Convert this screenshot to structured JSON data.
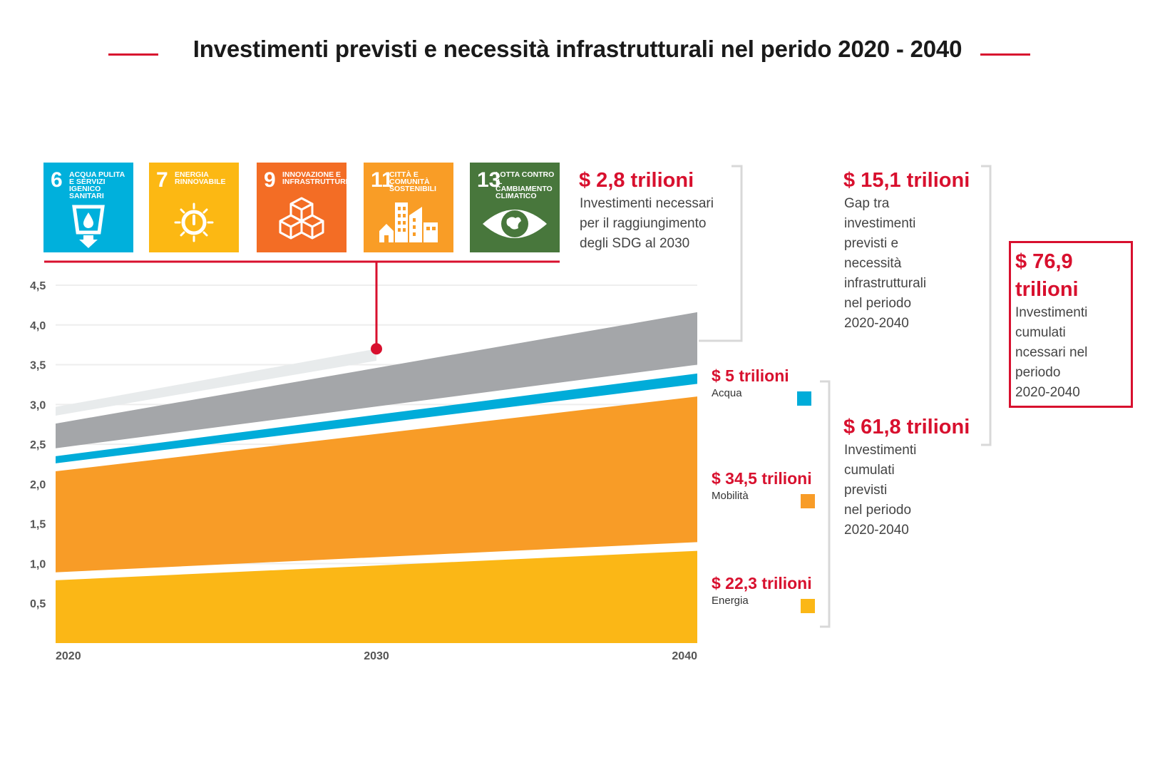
{
  "title": "Investimenti previsti e necessità infrastrutturali nel perido 2020 - 2040",
  "sdgs": [
    {
      "num": "6",
      "label": "Acqua pulita e servizi igenico sanitari",
      "color": "#00b0dc",
      "icon": "water-icon"
    },
    {
      "num": "7",
      "label": "Energia rinnovabile",
      "color": "#fcb813",
      "icon": "sun-power-icon"
    },
    {
      "num": "9",
      "label": "Innovazione e infrastrutture",
      "color": "#f36d25",
      "icon": "cubes-icon"
    },
    {
      "num": "11",
      "label": "Città e comunità sostenibili",
      "color": "#f99d26",
      "icon": "city-icon"
    },
    {
      "num": "13",
      "label": "Lotta contro il cambiamento climatico",
      "color": "#48773c",
      "icon": "eye-globe-icon"
    }
  ],
  "annotations": {
    "sdg_need": {
      "amount": "$ 2,8 trilioni",
      "lines": [
        "Investimenti necessari",
        "per il raggiungimento",
        "degli SDG al 2030"
      ]
    },
    "gap": {
      "amount": "$ 15,1 trilioni",
      "lines": [
        "Gap tra",
        "investimenti",
        "previsti e",
        "necessità",
        "infrastrutturali",
        "nel periodo",
        "2020-2040"
      ]
    },
    "planned": {
      "amount": "$ 61,8 trilioni",
      "lines": [
        "Investimenti",
        "cumulati",
        "previsti",
        "nel periodo",
        "2020-2040"
      ]
    },
    "total": {
      "amount_line1": "$ 76,9",
      "amount_line2": "trilioni",
      "lines": [
        "Investimenti",
        "cumulati",
        "ncessari nel",
        "periodo",
        "2020-2040"
      ]
    }
  },
  "categories": [
    {
      "amount": "$ 5 trilioni",
      "name": "Acqua",
      "color": "#00acd9"
    },
    {
      "amount": "$ 34,5 trilioni",
      "name": "Mobilità",
      "color": "#f89c27"
    },
    {
      "amount": "$ 22,3 trilioni",
      "name": "Energia",
      "color": "#fbb716"
    }
  ],
  "colors": {
    "accent": "#d8102e",
    "gap": "#a4a6a9",
    "sdg_band": "#e8ebec",
    "grid": "#eeeeee"
  },
  "chart_data": {
    "type": "area",
    "title": "Investimenti previsti e necessità infrastrutturali nel perido 2020 - 2040",
    "x": [
      2020,
      2040
    ],
    "x_tick_labels": [
      "2020",
      "2030",
      "2040"
    ],
    "y_tick_labels": [
      "0,5",
      "1,0",
      "1,5",
      "2,0",
      "2,5",
      "3,0",
      "3,5",
      "4,0",
      "4,5"
    ],
    "ylim": [
      0,
      4.5
    ],
    "xlim": [
      2020,
      2040
    ],
    "series": [
      {
        "name": "Energia",
        "color": "#fbb716",
        "lower": [
          0,
          0
        ],
        "upper": [
          0.79,
          1.16
        ]
      },
      {
        "name": "Mobilità",
        "color": "#f89c27",
        "lower": [
          0.89,
          1.27
        ],
        "upper": [
          2.16,
          3.1
        ]
      },
      {
        "name": "Acqua",
        "color": "#00acd9",
        "lower": [
          2.26,
          3.26
        ],
        "upper": [
          2.35,
          3.39
        ]
      },
      {
        "name": "Gap",
        "color": "#a4a6a9",
        "lower": [
          2.45,
          3.5
        ],
        "upper": [
          2.76,
          4.16
        ]
      },
      {
        "name": "SDG",
        "color": "#e8ebec",
        "lower": [
          2.86,
          3.55
        ],
        "upper": [
          2.97,
          3.7
        ],
        "x": [
          2020,
          2030
        ]
      }
    ],
    "marker": {
      "x": 2030,
      "y": 3.7
    }
  }
}
